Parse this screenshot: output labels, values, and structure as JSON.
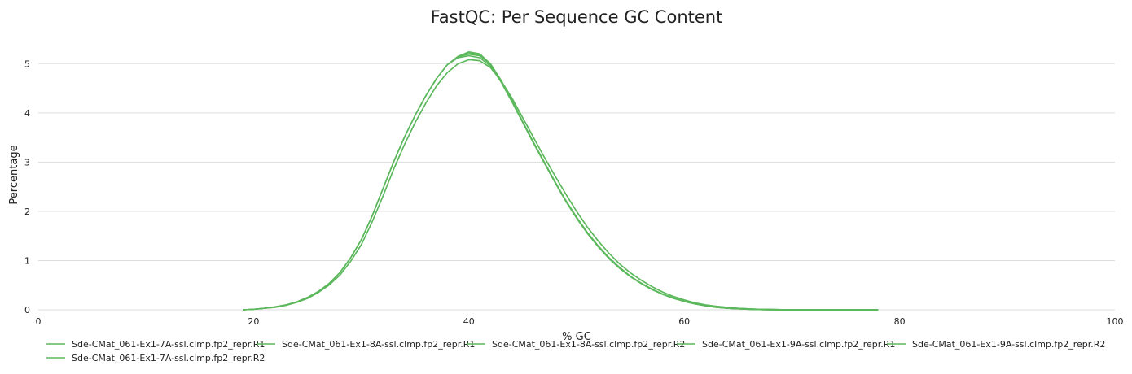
{
  "chart_data": {
    "type": "line",
    "title": "FastQC: Per Sequence GC Content",
    "xlabel": "% GC",
    "ylabel": "Percentage",
    "xlim": [
      0,
      100
    ],
    "ylim": [
      0,
      5.5
    ],
    "xticks": [
      0,
      20,
      40,
      60,
      80,
      100
    ],
    "yticks": [
      0,
      1,
      2,
      3,
      4,
      5
    ],
    "grid": "horizontal",
    "legend_position": "bottom",
    "line_color": "#5cb85c",
    "x": [
      19,
      20,
      21,
      22,
      23,
      24,
      25,
      26,
      27,
      28,
      29,
      30,
      31,
      32,
      33,
      34,
      35,
      36,
      37,
      38,
      39,
      40,
      41,
      42,
      43,
      44,
      45,
      46,
      47,
      48,
      49,
      50,
      51,
      52,
      53,
      54,
      55,
      56,
      57,
      58,
      59,
      60,
      61,
      62,
      63,
      64,
      65,
      66,
      67,
      68,
      69,
      70,
      71,
      72,
      73,
      74,
      75,
      76,
      77,
      78
    ],
    "series": [
      {
        "name": "Sde-CMat_061-Ex1-7A-ssl.clmp.fp2_repr.R1",
        "values": [
          0.0,
          0.01,
          0.03,
          0.06,
          0.1,
          0.16,
          0.25,
          0.37,
          0.53,
          0.75,
          1.05,
          1.42,
          1.9,
          2.45,
          3.0,
          3.5,
          3.95,
          4.35,
          4.7,
          4.98,
          5.15,
          5.22,
          5.18,
          4.98,
          4.65,
          4.25,
          3.82,
          3.4,
          3.0,
          2.6,
          2.22,
          1.88,
          1.57,
          1.3,
          1.06,
          0.86,
          0.68,
          0.54,
          0.42,
          0.32,
          0.24,
          0.17,
          0.12,
          0.08,
          0.05,
          0.03,
          0.02,
          0.01,
          0.005,
          0.0,
          0.0,
          0.0,
          0.0,
          0.0,
          0.0,
          0.0,
          0.0,
          0.0,
          0.0,
          0.0
        ]
      },
      {
        "name": "Sde-CMat_061-Ex1-7A-ssl.clmp.fp2_repr.R2",
        "values": [
          0.0,
          0.01,
          0.03,
          0.06,
          0.1,
          0.16,
          0.25,
          0.37,
          0.53,
          0.75,
          1.05,
          1.42,
          1.9,
          2.45,
          3.0,
          3.5,
          3.95,
          4.35,
          4.7,
          4.98,
          5.15,
          5.24,
          5.2,
          5.0,
          4.66,
          4.25,
          3.82,
          3.4,
          3.0,
          2.6,
          2.22,
          1.88,
          1.57,
          1.3,
          1.06,
          0.86,
          0.68,
          0.54,
          0.42,
          0.32,
          0.24,
          0.17,
          0.12,
          0.08,
          0.05,
          0.03,
          0.02,
          0.01,
          0.005,
          0.0,
          0.0,
          0.0,
          0.0,
          0.0,
          0.0,
          0.0,
          0.0,
          0.0,
          0.0,
          0.0
        ]
      },
      {
        "name": "Sde-CMat_061-Ex1-8A-ssl.clmp.fp2_repr.R1",
        "values": [
          0.0,
          0.01,
          0.03,
          0.06,
          0.1,
          0.16,
          0.25,
          0.37,
          0.53,
          0.75,
          1.05,
          1.42,
          1.9,
          2.45,
          3.0,
          3.5,
          3.95,
          4.35,
          4.7,
          4.98,
          5.12,
          5.16,
          5.12,
          4.95,
          4.62,
          4.22,
          3.8,
          3.38,
          2.98,
          2.58,
          2.2,
          1.86,
          1.55,
          1.28,
          1.04,
          0.84,
          0.67,
          0.53,
          0.41,
          0.31,
          0.23,
          0.17,
          0.12,
          0.08,
          0.05,
          0.03,
          0.02,
          0.01,
          0.005,
          0.0,
          0.0,
          0.0,
          0.0,
          0.0,
          0.0,
          0.0,
          0.0,
          0.0,
          0.0,
          0.0
        ]
      },
      {
        "name": "Sde-CMat_061-Ex1-8A-ssl.clmp.fp2_repr.R2",
        "values": [
          0.0,
          0.01,
          0.03,
          0.06,
          0.1,
          0.16,
          0.25,
          0.37,
          0.53,
          0.75,
          1.05,
          1.42,
          1.9,
          2.45,
          3.0,
          3.5,
          3.95,
          4.35,
          4.7,
          4.98,
          5.14,
          5.19,
          5.16,
          4.98,
          4.65,
          4.25,
          3.82,
          3.4,
          3.0,
          2.6,
          2.22,
          1.88,
          1.57,
          1.3,
          1.06,
          0.86,
          0.68,
          0.54,
          0.42,
          0.32,
          0.24,
          0.17,
          0.12,
          0.08,
          0.05,
          0.03,
          0.02,
          0.01,
          0.005,
          0.0,
          0.0,
          0.0,
          0.0,
          0.0,
          0.0,
          0.0,
          0.0,
          0.0,
          0.0,
          0.0
        ]
      },
      {
        "name": "Sde-CMat_061-Ex1-9A-ssl.clmp.fp2_repr.R1",
        "values": [
          0.0,
          0.01,
          0.03,
          0.05,
          0.09,
          0.15,
          0.23,
          0.35,
          0.5,
          0.7,
          0.98,
          1.32,
          1.78,
          2.3,
          2.85,
          3.35,
          3.8,
          4.2,
          4.55,
          4.82,
          5.0,
          5.08,
          5.06,
          4.92,
          4.65,
          4.3,
          3.9,
          3.5,
          3.1,
          2.72,
          2.35,
          2.0,
          1.68,
          1.4,
          1.15,
          0.93,
          0.75,
          0.6,
          0.47,
          0.36,
          0.27,
          0.2,
          0.14,
          0.1,
          0.07,
          0.05,
          0.03,
          0.02,
          0.01,
          0.01,
          0.005,
          0.0,
          0.0,
          0.0,
          0.0,
          0.0,
          0.0,
          0.0,
          0.0,
          0.0
        ]
      },
      {
        "name": "Sde-CMat_061-Ex1-9A-ssl.clmp.fp2_repr.R2",
        "values": [
          0.0,
          0.01,
          0.03,
          0.05,
          0.09,
          0.15,
          0.23,
          0.35,
          0.5,
          0.7,
          0.98,
          1.32,
          1.78,
          2.3,
          2.85,
          3.35,
          3.8,
          4.2,
          4.55,
          4.82,
          5.0,
          5.08,
          5.06,
          4.92,
          4.65,
          4.3,
          3.9,
          3.5,
          3.1,
          2.72,
          2.35,
          2.0,
          1.68,
          1.4,
          1.15,
          0.93,
          0.75,
          0.6,
          0.47,
          0.36,
          0.27,
          0.2,
          0.14,
          0.1,
          0.07,
          0.05,
          0.03,
          0.02,
          0.01,
          0.01,
          0.005,
          0.0,
          0.0,
          0.0,
          0.0,
          0.0,
          0.0,
          0.0,
          0.0,
          0.0
        ]
      }
    ],
    "legend_order": [
      0,
      2,
      3,
      4,
      5,
      1
    ]
  }
}
